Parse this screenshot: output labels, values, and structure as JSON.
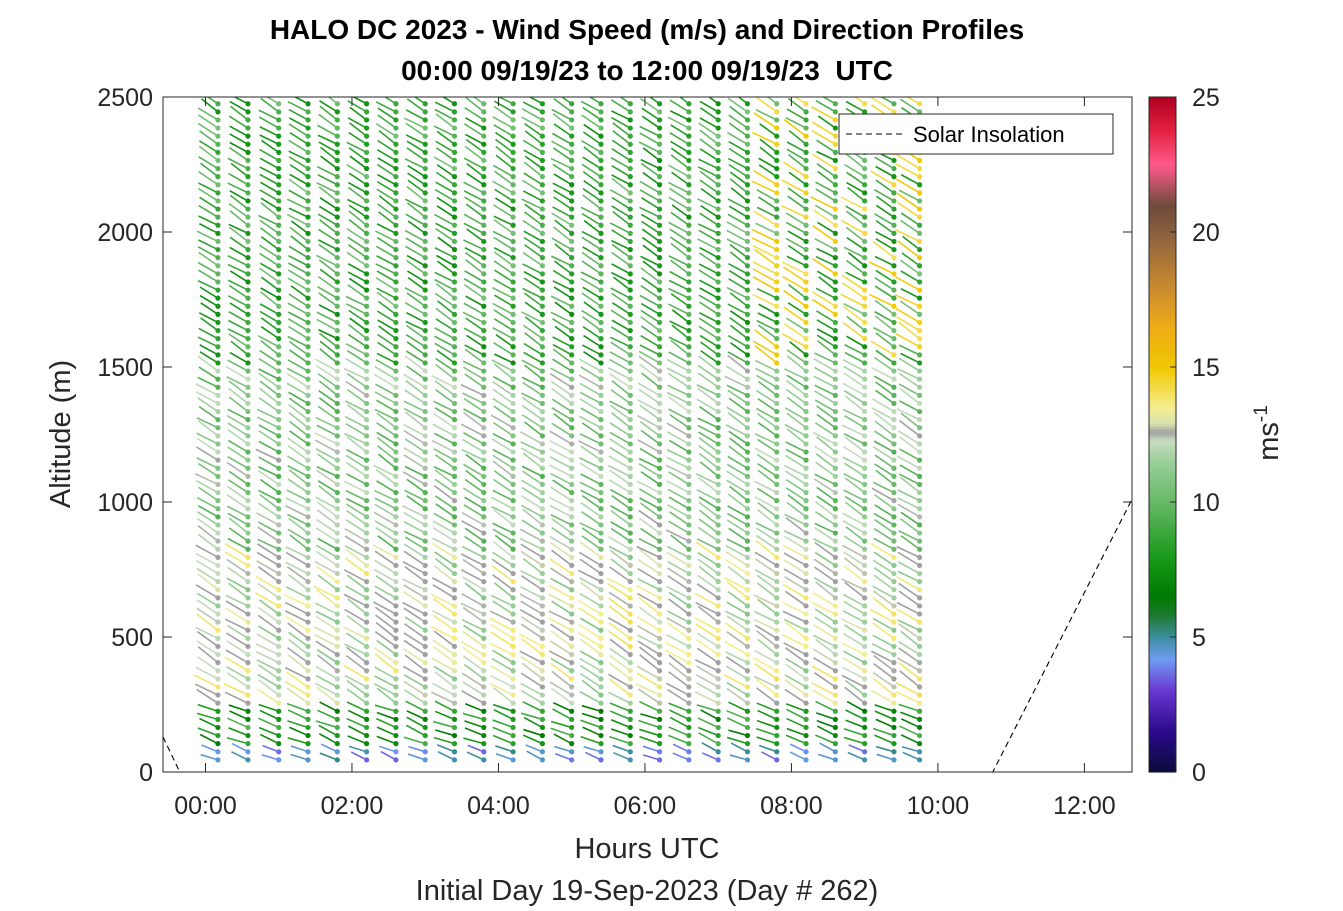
{
  "chart_data": {
    "type": "wind-profile-quiver",
    "title": "HALO DC 2023 - Wind Speed (m/s) and Direction Profiles",
    "subtitle": "00:00 09/19/23 to 12:00 09/19/23  UTC",
    "xlabel": "Hours UTC",
    "xlabel2": "Initial Day 19-Sep-2023 (Day # 262)",
    "ylabel": "Altitude (m)",
    "xlim": [
      -0.58,
      12.65
    ],
    "ylim": [
      0,
      2500
    ],
    "xticks": [
      0,
      2,
      4,
      6,
      8,
      10,
      12
    ],
    "xtick_labels": [
      "00:00",
      "02:00",
      "04:00",
      "06:00",
      "08:00",
      "10:00",
      "12:00"
    ],
    "yticks": [
      0,
      500,
      1000,
      1500,
      2000,
      2500
    ],
    "ytick_labels": [
      "0",
      "500",
      "1000",
      "1500",
      "2000",
      "2500"
    ],
    "profile_times_hours": [
      0.17,
      0.58,
      1.0,
      1.4,
      1.8,
      2.2,
      2.6,
      3.0,
      3.4,
      3.8,
      4.2,
      4.6,
      5.0,
      5.4,
      5.8,
      6.2,
      6.6,
      7.0,
      7.4,
      7.8,
      8.2,
      8.6,
      9.0,
      9.4,
      9.75
    ],
    "altitude_step_m": 30,
    "altitude_range_m": [
      45,
      2490
    ],
    "typical_direction": "northwesterly (pointing toward southeast)",
    "speed_layers": [
      {
        "from_m": 0,
        "to_m": 80,
        "speed_ms": 4.5
      },
      {
        "from_m": 80,
        "to_m": 250,
        "speed_ms": 8
      },
      {
        "from_m": 250,
        "to_m": 800,
        "speed_ms": 12.5
      },
      {
        "from_m": 800,
        "to_m": 1500,
        "speed_ms": 11
      },
      {
        "from_m": 1500,
        "to_m": 2500,
        "speed_ms": 9
      }
    ],
    "legend": {
      "location": "top-right",
      "entries": [
        "Solar Insolation"
      ]
    },
    "solar_insolation": {
      "style": "dashed",
      "x": [
        -0.58,
        -0.35,
        10.75,
        12.65
      ],
      "y": [
        130,
        0,
        0,
        1010
      ]
    },
    "colorbar": {
      "label": "ms",
      "label_exponent": "-1",
      "range": [
        0,
        25
      ],
      "ticks": [
        0,
        5,
        10,
        15,
        20,
        25
      ],
      "tick_labels": [
        "0",
        "5",
        "10",
        "15",
        "20",
        "25"
      ],
      "colors": [
        {
          "v": 0,
          "c": "#0a0a3a"
        },
        {
          "v": 1.5,
          "c": "#2a0a8a"
        },
        {
          "v": 3,
          "c": "#6a35d0"
        },
        {
          "v": 4.2,
          "c": "#6e9cf0"
        },
        {
          "v": 5,
          "c": "#3d8fa0"
        },
        {
          "v": 5.8,
          "c": "#1e7a30"
        },
        {
          "v": 6.5,
          "c": "#007a00"
        },
        {
          "v": 8,
          "c": "#1a9a1a"
        },
        {
          "v": 10,
          "c": "#66b866"
        },
        {
          "v": 11.5,
          "c": "#9acf9a"
        },
        {
          "v": 12.3,
          "c": "#c8dcc0"
        },
        {
          "v": 12.6,
          "c": "#a0a0a0"
        },
        {
          "v": 12.9,
          "c": "#d6e0b0"
        },
        {
          "v": 13.5,
          "c": "#f5ee90"
        },
        {
          "v": 15,
          "c": "#f0c800"
        },
        {
          "v": 16.5,
          "c": "#eeab18"
        },
        {
          "v": 18,
          "c": "#c88a30"
        },
        {
          "v": 20,
          "c": "#8a6040"
        },
        {
          "v": 21,
          "c": "#6e4a3a"
        },
        {
          "v": 22.5,
          "c": "#ff5a8a"
        },
        {
          "v": 23.8,
          "c": "#e22040"
        },
        {
          "v": 25,
          "c": "#b00020"
        }
      ]
    }
  }
}
